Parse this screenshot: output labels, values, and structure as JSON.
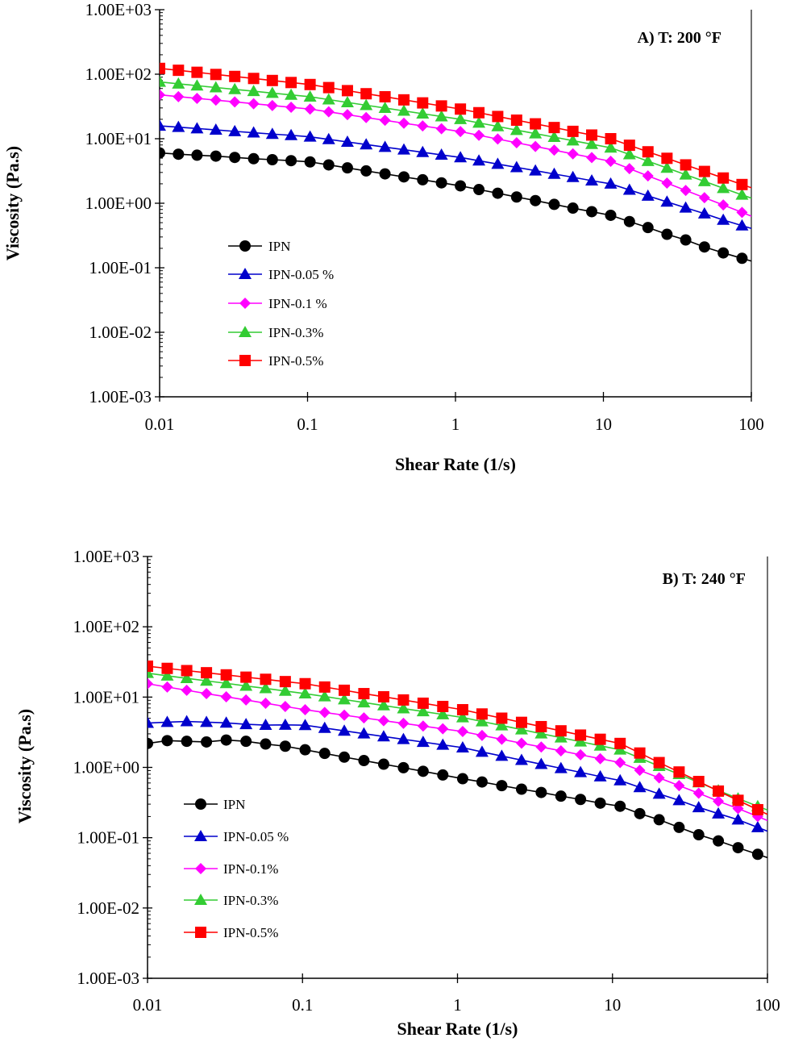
{
  "chart_data": [
    {
      "type": "line",
      "title": "A) T: 200 °F",
      "xlabel": "Shear Rate (1/s)",
      "ylabel": "Viscosity (Pa.s)",
      "xscale": "log",
      "yscale": "log",
      "xlim": [
        0.01,
        100
      ],
      "ylim": [
        0.001,
        1000
      ],
      "xticks": [
        "0.01",
        "0.1",
        "1",
        "10",
        "100"
      ],
      "yticks": [
        "1.00E-03",
        "1.00E-02",
        "1.00E-01",
        "1.00E+00",
        "1.00E+01",
        "1.00E+02",
        "1.00E+03"
      ],
      "grid": false,
      "legend_position": "lower-left",
      "x": [
        0.01,
        0.0134,
        0.0179,
        0.024,
        0.0322,
        0.0432,
        0.0578,
        0.0774,
        0.104,
        0.139,
        0.186,
        0.249,
        0.334,
        0.448,
        0.6,
        0.804,
        1.08,
        1.44,
        1.93,
        2.59,
        3.47,
        4.65,
        6.22,
        8.34,
        11.2,
        15.0,
        20.0,
        26.9,
        36.0,
        48.2,
        64.6,
        86.5
      ],
      "series": [
        {
          "name": "IPN",
          "color": "#000000",
          "marker": "circle",
          "values": [
            6.03,
            5.75,
            5.56,
            5.37,
            5.13,
            4.9,
            4.73,
            4.57,
            4.37,
            3.93,
            3.53,
            3.17,
            2.85,
            2.56,
            2.31,
            2.07,
            1.86,
            1.63,
            1.43,
            1.25,
            1.1,
            0.96,
            0.84,
            0.74,
            0.65,
            0.52,
            0.42,
            0.33,
            0.27,
            0.21,
            0.17,
            0.14
          ]
        },
        {
          "name": "IPN-0.05 %",
          "color": "#0000cc",
          "marker": "triangle",
          "values": [
            15.8,
            15.1,
            14.4,
            13.7,
            13.0,
            12.4,
            11.8,
            11.3,
            10.7,
            9.77,
            8.91,
            8.13,
            7.41,
            6.76,
            6.17,
            5.62,
            5.13,
            4.56,
            4.05,
            3.6,
            3.2,
            2.84,
            2.53,
            2.24,
            2.0,
            1.61,
            1.3,
            1.05,
            0.85,
            0.69,
            0.55,
            0.45
          ]
        },
        {
          "name": "IPN-0.1 %",
          "color": "#ff00ff",
          "marker": "diamond",
          "values": [
            47.9,
            44.9,
            42.2,
            39.6,
            37.2,
            34.9,
            32.7,
            30.7,
            28.8,
            26.1,
            23.6,
            21.3,
            19.3,
            17.4,
            15.8,
            14.3,
            12.9,
            11.3,
            9.89,
            8.66,
            7.59,
            6.65,
            5.82,
            5.1,
            4.47,
            3.44,
            2.65,
            2.05,
            1.58,
            1.22,
            0.94,
            0.72
          ]
        },
        {
          "name": "IPN-0.3%",
          "color": "#33cc33",
          "marker": "triangle",
          "values": [
            75.9,
            71.0,
            66.4,
            62.2,
            58.2,
            54.5,
            51.0,
            47.7,
            44.7,
            40.4,
            36.5,
            33.0,
            29.9,
            27.0,
            24.4,
            22.1,
            20.0,
            17.6,
            15.5,
            13.6,
            12.0,
            10.6,
            9.33,
            8.22,
            7.24,
            5.7,
            4.48,
            3.52,
            2.77,
            2.18,
            1.71,
            1.35
          ]
        },
        {
          "name": "IPN-0.5%",
          "color": "#ff0000",
          "marker": "square",
          "values": [
            123,
            115,
            107,
            99.1,
            92.3,
            85.9,
            79.9,
            74.3,
            69.2,
            62.0,
            55.6,
            49.8,
            44.7,
            40.0,
            35.9,
            32.2,
            28.8,
            25.3,
            22.1,
            19.4,
            17.0,
            14.9,
            13.0,
            11.4,
            10.0,
            7.92,
            6.27,
            4.97,
            3.93,
            3.11,
            2.46,
            1.95
          ]
        }
      ]
    },
    {
      "type": "line",
      "title": "B) T: 240 °F",
      "xlabel": "Shear Rate (1/s)",
      "ylabel": "Viscosity (Pa.s)",
      "xscale": "log",
      "yscale": "log",
      "xlim": [
        0.01,
        100
      ],
      "ylim": [
        0.001,
        1000
      ],
      "xticks": [
        "0.01",
        "0.1",
        "1",
        "10",
        "100"
      ],
      "yticks": [
        "1.00E-03",
        "1.00E-02",
        "1.00E-01",
        "1.00E+00",
        "1.00E+01",
        "1.00E+02",
        "1.00E+03"
      ],
      "grid": false,
      "legend_position": "lower-left",
      "x": [
        0.01,
        0.0134,
        0.0179,
        0.024,
        0.0322,
        0.0432,
        0.0578,
        0.0774,
        0.104,
        0.139,
        0.186,
        0.249,
        0.334,
        0.448,
        0.6,
        0.804,
        1.08,
        1.44,
        1.93,
        2.59,
        3.47,
        4.65,
        6.22,
        8.34,
        11.2,
        15.0,
        20.0,
        26.9,
        36.0,
        48.2,
        64.6,
        86.5
      ],
      "series": [
        {
          "name": "IPN",
          "color": "#000000",
          "marker": "circle",
          "values": [
            2.19,
            2.4,
            2.35,
            2.3,
            2.45,
            2.35,
            2.15,
            2.0,
            1.78,
            1.58,
            1.4,
            1.25,
            1.11,
            0.99,
            0.88,
            0.78,
            0.69,
            0.62,
            0.55,
            0.49,
            0.44,
            0.39,
            0.35,
            0.31,
            0.28,
            0.22,
            0.18,
            0.14,
            0.11,
            0.09,
            0.072,
            0.058
          ]
        },
        {
          "name": "IPN-0.05 %",
          "color": "#0000cc",
          "marker": "triangle",
          "values": [
            4.27,
            4.4,
            4.5,
            4.4,
            4.3,
            4.1,
            4.0,
            4.02,
            3.98,
            3.63,
            3.31,
            3.02,
            2.75,
            2.51,
            2.29,
            2.09,
            1.91,
            1.66,
            1.45,
            1.27,
            1.11,
            0.97,
            0.85,
            0.74,
            0.65,
            0.52,
            0.42,
            0.34,
            0.27,
            0.22,
            0.18,
            0.14
          ]
        },
        {
          "name": "IPN-0.1%",
          "color": "#ff00ff",
          "marker": "diamond",
          "values": [
            15.5,
            13.9,
            12.5,
            11.2,
            10.1,
            9.1,
            8.18,
            7.35,
            6.61,
            6.04,
            5.53,
            5.06,
            4.62,
            4.23,
            3.87,
            3.54,
            3.24,
            2.85,
            2.51,
            2.21,
            1.95,
            1.72,
            1.51,
            1.33,
            1.17,
            0.91,
            0.71,
            0.55,
            0.43,
            0.33,
            0.26,
            0.2
          ]
        },
        {
          "name": "IPN-0.3%",
          "color": "#33cc33",
          "marker": "triangle",
          "values": [
            21.9,
            20.1,
            18.5,
            17.0,
            15.7,
            14.4,
            13.3,
            12.2,
            11.2,
            10.2,
            9.23,
            8.37,
            7.59,
            6.88,
            6.24,
            5.66,
            5.13,
            4.49,
            3.94,
            3.45,
            3.02,
            2.65,
            2.32,
            2.03,
            1.78,
            1.36,
            1.04,
            0.8,
            0.61,
            0.47,
            0.36,
            0.28
          ]
        },
        {
          "name": "IPN-0.5%",
          "color": "#ff0000",
          "marker": "square",
          "values": [
            27.5,
            25.6,
            23.8,
            22.2,
            20.7,
            19.2,
            17.9,
            16.6,
            15.5,
            13.9,
            12.5,
            11.2,
            10.1,
            9.1,
            8.18,
            7.35,
            6.61,
            5.75,
            5.01,
            4.37,
            3.8,
            3.31,
            2.88,
            2.51,
            2.19,
            1.6,
            1.17,
            0.86,
            0.63,
            0.46,
            0.34,
            0.25
          ]
        }
      ]
    }
  ]
}
